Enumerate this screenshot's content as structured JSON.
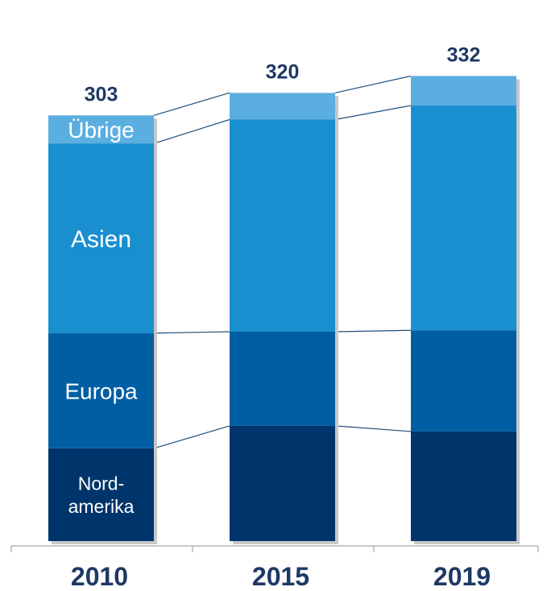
{
  "chart_data": {
    "type": "bar",
    "stacked": true,
    "categories": [
      "2010",
      "2015",
      "2019"
    ],
    "totals": [
      "303",
      "320",
      "332"
    ],
    "series": [
      {
        "name": "Nord-\namerika",
        "values": [
          66,
          82,
          78
        ],
        "color": "#00356b"
      },
      {
        "name": "Europa",
        "values": [
          82,
          67,
          72
        ],
        "color": "#005fa3"
      },
      {
        "name": "Asien",
        "values": [
          135,
          151,
          160
        ],
        "color": "#1a8fd0"
      },
      {
        "name": "Übrige",
        "values": [
          20,
          19,
          21
        ],
        "color": "#5baee0"
      }
    ],
    "title": "",
    "xlabel": "",
    "ylabel": "",
    "ylim": [
      0,
      340
    ],
    "grid": false,
    "legend": "none"
  }
}
